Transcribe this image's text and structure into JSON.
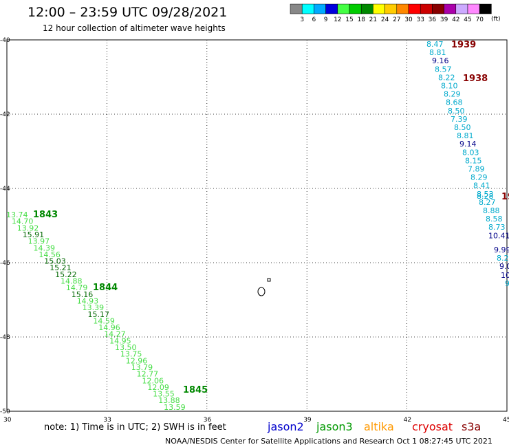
{
  "title": "12:00 – 23:59 UTC 09/28/2021",
  "subtitle": "12 hour collection of altimeter wave heights",
  "legend": {
    "unit": "(ft)",
    "swatches": [
      {
        "color": "#888888",
        "label": "3"
      },
      {
        "color": "#00ffff",
        "label": "6"
      },
      {
        "color": "#00aaff",
        "label": "9"
      },
      {
        "color": "#0000dd",
        "label": "12"
      },
      {
        "color": "#44ff44",
        "label": "15"
      },
      {
        "color": "#00cc00",
        "label": "18"
      },
      {
        "color": "#008800",
        "label": "21"
      },
      {
        "color": "#ffff00",
        "label": "24"
      },
      {
        "color": "#ffcc00",
        "label": "27"
      },
      {
        "color": "#ff8800",
        "label": "30"
      },
      {
        "color": "#ff0000",
        "label": "33"
      },
      {
        "color": "#cc0000",
        "label": "36"
      },
      {
        "color": "#880000",
        "label": "39"
      },
      {
        "color": "#aa00aa",
        "label": "42"
      },
      {
        "color": "#ccaaff",
        "label": "45"
      },
      {
        "color": "#ff88ff",
        "label": "70"
      },
      {
        "color": "#000000",
        "label": ""
      }
    ]
  },
  "axes": {
    "lon_ticks": [
      "30",
      "33",
      "36",
      "39",
      "42",
      "45"
    ],
    "lat_ticks": [
      "-40",
      "-42",
      "-44",
      "-46",
      "-48",
      "-50"
    ]
  },
  "tracks": {
    "east": {
      "color_light": "#00aacc",
      "color_dark": "#000088",
      "values": [
        "8.47",
        "8.81",
        "9.16",
        "8.57",
        "8.22",
        "8.10",
        "8.29",
        "8.68",
        "8.50",
        "7.39",
        "8.50",
        "8.81",
        "9.14",
        "8.03",
        "8.15",
        "7.89",
        "8.29",
        "8.41",
        "8.53",
        "8.27",
        "8.88",
        "8.58",
        "8.73",
        "10.41"
      ],
      "times": [
        "1939",
        "1938",
        "19"
      ],
      "time_color": "#880000",
      "edge_values": [
        "8.28",
        "9.99",
        "8.2",
        "9.0",
        "10",
        "9"
      ]
    },
    "west": {
      "color_light": "#44dd44",
      "color_dark": "#006600",
      "values": [
        "13.74",
        "14.70",
        "13.92",
        "15.91",
        "13.97",
        "14.39",
        "14.56",
        "15.03",
        "15.21",
        "15.22",
        "14.88",
        "14.79",
        "15.16",
        "14.93",
        "13.39",
        "15.17",
        "14.59",
        "14.96",
        "14.27",
        "14.95",
        "13.50",
        "13.75",
        "12.96",
        "13.79",
        "12.77",
        "12.06",
        "12.09",
        "13.55",
        "13.88",
        "13.59"
      ],
      "times": [
        "1843",
        "1844",
        "1845"
      ],
      "time_color": "#008800"
    }
  },
  "note": "note: 1) Time is in UTC; 2) SWH is in feet",
  "satellites": [
    {
      "name": "jason2",
      "color": "#0000cc"
    },
    {
      "name": "jason3",
      "color": "#009900"
    },
    {
      "name": "altika",
      "color": "#ff9900"
    },
    {
      "name": "cryosat",
      "color": "#dd0000"
    },
    {
      "name": "s3a",
      "color": "#880000"
    }
  ],
  "credit": "NOAA/NESDIS Center for Satellite Applications and Research     Oct  1 08:27:45 UTC 2021"
}
